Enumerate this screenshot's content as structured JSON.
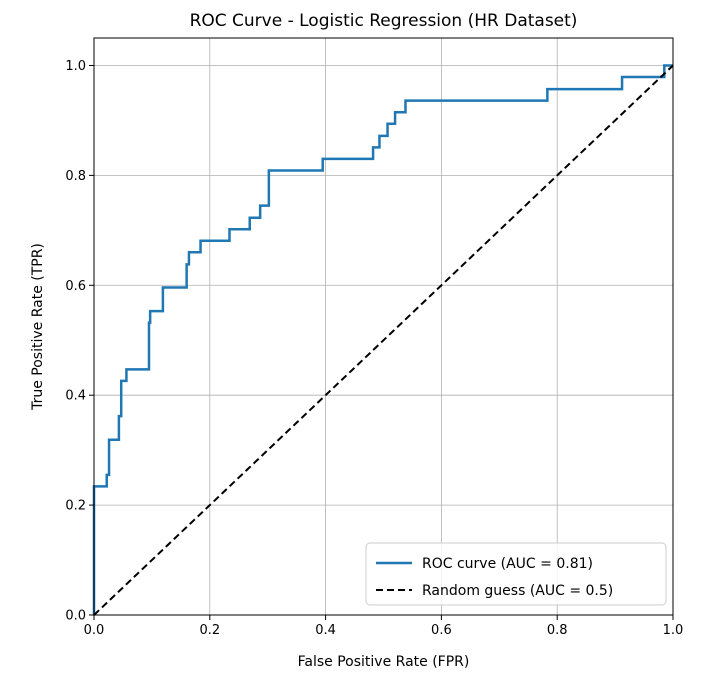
{
  "chart_data": {
    "type": "line",
    "title": "ROC Curve - Logistic Regression (HR Dataset)",
    "xlabel": "False Positive Rate (FPR)",
    "ylabel": "True Positive Rate (TPR)",
    "xlim": [
      0.0,
      1.0
    ],
    "ylim": [
      0.0,
      1.05
    ],
    "x_ticks": [
      0.0,
      0.2,
      0.4,
      0.6,
      0.8,
      1.0
    ],
    "y_ticks": [
      0.0,
      0.2,
      0.4,
      0.6,
      0.8,
      1.0
    ],
    "x_tick_labels": [
      "0.0",
      "0.2",
      "0.4",
      "0.6",
      "0.8",
      "1.0"
    ],
    "y_tick_labels": [
      "0.0",
      "0.2",
      "0.4",
      "0.6",
      "0.8",
      "1.0"
    ],
    "grid": true,
    "legend_position": "lower-right",
    "series": [
      {
        "name": "ROC curve (AUC = 0.81)",
        "style": "solid",
        "color": "#1f77b4",
        "x": [
          0.0,
          0.0,
          0.022,
          0.022,
          0.026,
          0.026,
          0.043,
          0.043,
          0.047,
          0.047,
          0.056,
          0.056,
          0.095,
          0.095,
          0.097,
          0.097,
          0.119,
          0.119,
          0.16,
          0.16,
          0.164,
          0.164,
          0.184,
          0.184,
          0.234,
          0.234,
          0.269,
          0.269,
          0.287,
          0.287,
          0.302,
          0.302,
          0.395,
          0.395,
          0.482,
          0.482,
          0.493,
          0.493,
          0.507,
          0.507,
          0.52,
          0.52,
          0.538,
          0.538,
          0.783,
          0.783,
          0.912,
          0.912,
          0.985,
          0.985,
          1.0
        ],
        "y": [
          0.0,
          0.234,
          0.234,
          0.255,
          0.255,
          0.319,
          0.319,
          0.362,
          0.362,
          0.426,
          0.426,
          0.447,
          0.447,
          0.532,
          0.532,
          0.553,
          0.553,
          0.596,
          0.596,
          0.638,
          0.638,
          0.66,
          0.66,
          0.681,
          0.681,
          0.702,
          0.702,
          0.723,
          0.723,
          0.745,
          0.745,
          0.809,
          0.809,
          0.83,
          0.83,
          0.851,
          0.851,
          0.872,
          0.872,
          0.894,
          0.894,
          0.915,
          0.915,
          0.936,
          0.936,
          0.957,
          0.957,
          0.979,
          0.979,
          1.0,
          1.0
        ]
      },
      {
        "name": "Random guess (AUC = 0.5)",
        "style": "dashed",
        "color": "#000000",
        "x": [
          0.0,
          1.0
        ],
        "y": [
          0.0,
          1.0
        ]
      }
    ]
  }
}
